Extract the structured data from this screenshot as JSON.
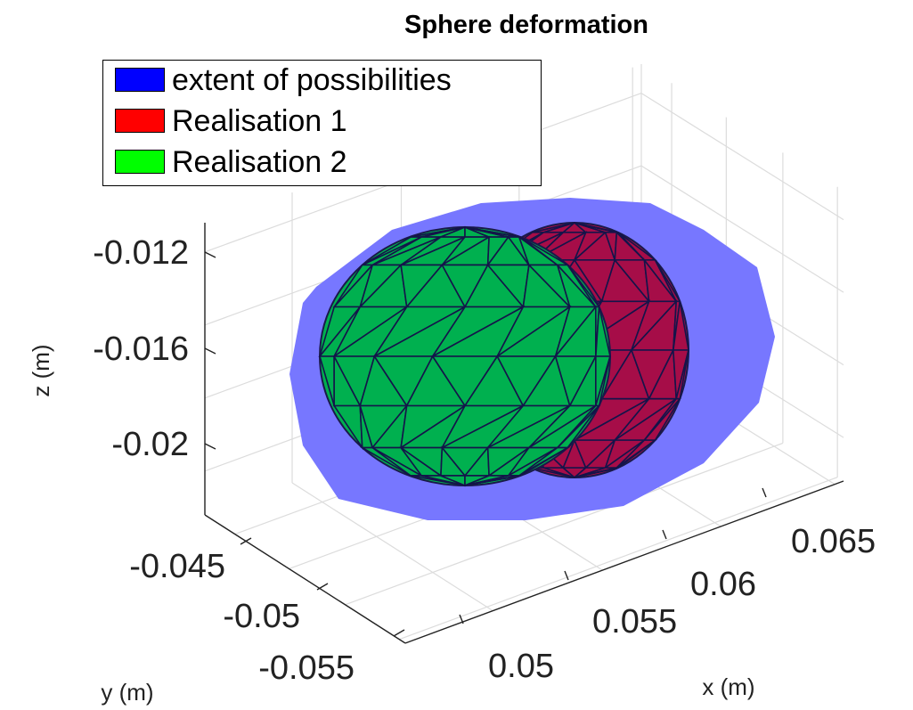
{
  "chart_data": {
    "type": "3d-surface",
    "title": "Sphere deformation",
    "xlabel": "x (m)",
    "ylabel": "y (m)",
    "zlabel": "z (m)",
    "xticks": [
      "0.05",
      "0.055",
      "0.06",
      "0.065"
    ],
    "yticks": [
      "-0.045",
      "-0.05",
      "-0.055"
    ],
    "zticks": [
      "-0.012",
      "-0.016",
      "-0.02"
    ],
    "grid": true,
    "legend_position": "top-left",
    "series": [
      {
        "name": "extent of possibilities",
        "color": "#7777ff"
      },
      {
        "name": "Realisation 1",
        "color": "#a60d48"
      },
      {
        "name": "Realisation 2",
        "color": "#00b04f"
      }
    ]
  },
  "legend": {
    "items": [
      {
        "label": "extent of possibilities",
        "swatch_color": "#0000ff"
      },
      {
        "label": "Realisation 1",
        "swatch_color": "#ff0000"
      },
      {
        "label": "Realisation 2",
        "swatch_color": "#00ff00"
      }
    ]
  }
}
